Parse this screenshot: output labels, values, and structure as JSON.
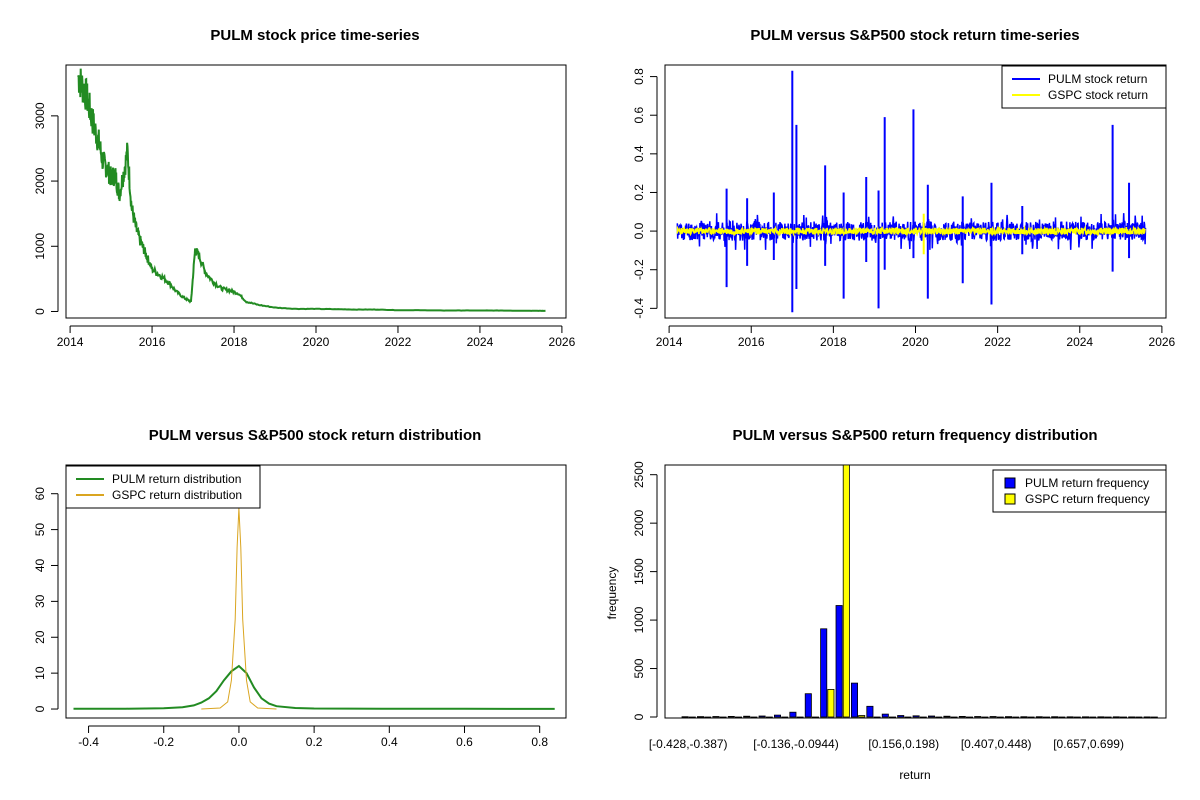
{
  "chart_data": [
    {
      "type": "line",
      "title": "PULM stock price time-series",
      "xlabel": "",
      "ylabel": "",
      "x_ticks": [
        "2014",
        "2016",
        "2018",
        "2020",
        "2022",
        "2024",
        "2026"
      ],
      "y_ticks": [
        "0",
        "1000",
        "2000",
        "3000"
      ],
      "xlim": [
        2013.9,
        2026.1
      ],
      "ylim": [
        -100,
        3780
      ],
      "grid": false,
      "color": "#228B22",
      "series": [
        {
          "x": [
            2014.2,
            2014.3,
            2014.4,
            2014.5,
            2014.6,
            2014.7,
            2014.8,
            2014.9,
            2015.0,
            2015.1,
            2015.2,
            2015.3,
            2015.4,
            2015.5,
            2015.6,
            2015.7,
            2015.8,
            2015.9,
            2016.0,
            2016.2,
            2016.4,
            2016.6,
            2016.8,
            2016.95,
            2017.05,
            2017.15,
            2017.3,
            2017.5,
            2017.7,
            2017.9,
            2018.1,
            2018.3,
            2018.6,
            2019.0,
            2019.5,
            2020.0,
            2020.5,
            2021.0,
            2021.5,
            2022.0,
            2022.5,
            2023.0,
            2023.5,
            2024.0,
            2024.5,
            2025.0,
            2025.3,
            2025.6
          ],
          "values": [
            3600,
            3450,
            3300,
            3050,
            2800,
            2600,
            2300,
            2200,
            2050,
            2100,
            1800,
            2100,
            2450,
            1600,
            1300,
            1100,
            950,
            800,
            650,
            550,
            450,
            300,
            200,
            150,
            950,
            850,
            600,
            450,
            350,
            320,
            280,
            150,
            100,
            60,
            40,
            40,
            35,
            30,
            30,
            20,
            20,
            15,
            15,
            15,
            15,
            12,
            10,
            10
          ]
        }
      ]
    },
    {
      "type": "line",
      "title": "PULM versus S&P500 stock return time-series",
      "xlabel": "",
      "ylabel": "",
      "x_ticks": [
        "2014",
        "2016",
        "2018",
        "2020",
        "2022",
        "2024",
        "2026"
      ],
      "y_ticks": [
        "-0.4",
        "-0.2",
        "0.0",
        "0.2",
        "0.4",
        "0.6",
        "0.8"
      ],
      "xlim": [
        2013.9,
        2026.1
      ],
      "ylim": [
        -0.45,
        0.86
      ],
      "legend": [
        "PULM stock return",
        "GSPC stock return"
      ],
      "legend_position": "top-right",
      "grid": false,
      "series": [
        {
          "name": "PULM stock return",
          "color": "#0000FF",
          "spikes": [
            {
              "x": 2015.4,
              "hi": 0.22,
              "lo": -0.29
            },
            {
              "x": 2015.9,
              "hi": 0.17,
              "lo": -0.18
            },
            {
              "x": 2016.55,
              "hi": 0.2,
              "lo": -0.15
            },
            {
              "x": 2017.0,
              "hi": 0.83,
              "lo": -0.42
            },
            {
              "x": 2017.1,
              "hi": 0.55,
              "lo": -0.3
            },
            {
              "x": 2017.8,
              "hi": 0.34,
              "lo": -0.18
            },
            {
              "x": 2018.25,
              "hi": 0.2,
              "lo": -0.35
            },
            {
              "x": 2018.8,
              "hi": 0.28,
              "lo": -0.16
            },
            {
              "x": 2019.1,
              "hi": 0.21,
              "lo": -0.4
            },
            {
              "x": 2019.25,
              "hi": 0.59,
              "lo": -0.2
            },
            {
              "x": 2019.95,
              "hi": 0.63,
              "lo": -0.14
            },
            {
              "x": 2020.3,
              "hi": 0.24,
              "lo": -0.35
            },
            {
              "x": 2021.15,
              "hi": 0.18,
              "lo": -0.27
            },
            {
              "x": 2021.85,
              "hi": 0.25,
              "lo": -0.38
            },
            {
              "x": 2022.6,
              "hi": 0.13,
              "lo": -0.12
            },
            {
              "x": 2024.8,
              "hi": 0.55,
              "lo": -0.21
            },
            {
              "x": 2025.2,
              "hi": 0.25,
              "lo": -0.14
            }
          ]
        },
        {
          "name": "GSPC stock return",
          "color": "#FFFF00",
          "spikes": [
            {
              "x": 2020.2,
              "hi": 0.09,
              "lo": -0.12
            }
          ]
        }
      ]
    },
    {
      "type": "line",
      "title": "PULM versus S&P500 stock return distribution",
      "xlabel": "",
      "ylabel": "",
      "x_ticks": [
        "-0.4",
        "-0.2",
        "0.0",
        "0.2",
        "0.4",
        "0.6",
        "0.8"
      ],
      "y_ticks": [
        "0",
        "10",
        "20",
        "30",
        "40",
        "50",
        "60"
      ],
      "xlim": [
        -0.46,
        0.87
      ],
      "ylim": [
        -2.5,
        68
      ],
      "legend": [
        "PULM return distribution",
        "GSPC return distribution"
      ],
      "legend_position": "top-left",
      "grid": false,
      "series": [
        {
          "name": "PULM return distribution",
          "color": "#228B22",
          "x": [
            -0.44,
            -0.3,
            -0.2,
            -0.15,
            -0.12,
            -0.1,
            -0.08,
            -0.06,
            -0.04,
            -0.02,
            0.0,
            0.02,
            0.04,
            0.06,
            0.08,
            0.1,
            0.15,
            0.2,
            0.4,
            0.6,
            0.84
          ],
          "values": [
            0.05,
            0.08,
            0.2,
            0.5,
            1.0,
            1.8,
            3.0,
            5.0,
            8.0,
            10.5,
            12.0,
            10.0,
            6.0,
            3.0,
            1.5,
            0.8,
            0.3,
            0.15,
            0.05,
            0.05,
            0.03
          ]
        },
        {
          "name": "GSPC return distribution",
          "color": "#DAA520",
          "x": [
            -0.1,
            -0.05,
            -0.03,
            -0.02,
            -0.01,
            -0.005,
            0.0,
            0.005,
            0.01,
            0.02,
            0.03,
            0.05,
            0.1
          ],
          "values": [
            0.0,
            0.3,
            2.0,
            8.0,
            25.0,
            45.0,
            56.0,
            45.0,
            25.0,
            8.0,
            2.0,
            0.3,
            0.0
          ]
        }
      ]
    },
    {
      "type": "bar",
      "title": "PULM versus S&P500 return frequency distribution",
      "xlabel": "return",
      "ylabel": "frequency",
      "y_ticks": [
        "0",
        "500",
        "1000",
        "1500",
        "2000",
        "2500"
      ],
      "ylim": [
        0,
        2600
      ],
      "x_tick_labels": [
        "[-0.428,-0.387)",
        "[-0.136,-0.0944)",
        "[0.156,0.198)",
        "[0.407,0.448)",
        "[0.657,0.699)"
      ],
      "x_tick_label_index": [
        0,
        7,
        14,
        20,
        26
      ],
      "legend": [
        "PULM return frequency",
        "GSPC return frequency"
      ],
      "legend_position": "top-right",
      "grid": false,
      "series": [
        {
          "name": "PULM return frequency",
          "color": "#0000FF",
          "values": [
            3,
            4,
            5,
            6,
            8,
            10,
            20,
            50,
            240,
            910,
            1150,
            350,
            110,
            30,
            15,
            12,
            10,
            8,
            6,
            5,
            5,
            4,
            3,
            3,
            3,
            2,
            2,
            2,
            2,
            1,
            1
          ]
        },
        {
          "name": "GSPC return frequency",
          "color": "#FFFF00",
          "values": [
            0,
            0,
            0,
            0,
            0,
            0,
            0,
            0,
            0,
            285,
            2600,
            15,
            0,
            0,
            0,
            0,
            0,
            0,
            0,
            0,
            0,
            0,
            0,
            0,
            0,
            0,
            0,
            0,
            0,
            0,
            0
          ]
        }
      ]
    }
  ]
}
